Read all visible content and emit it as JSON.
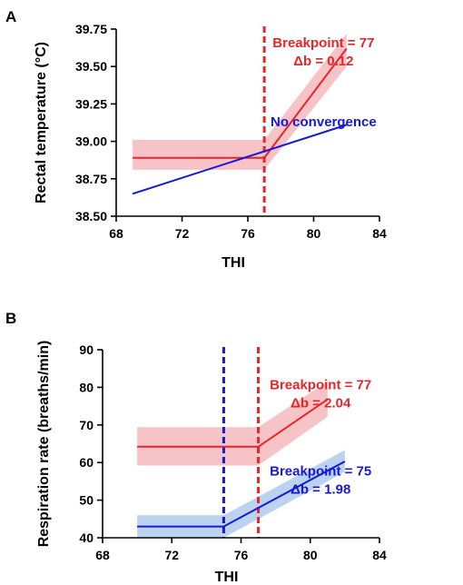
{
  "chart_data": [
    {
      "panel": "A",
      "type": "line",
      "xlabel": "THI",
      "ylabel": "Rectal temperature (°C)",
      "xlim": [
        68,
        84
      ],
      "ylim": [
        38.5,
        39.75
      ],
      "xticks": [
        68,
        72,
        76,
        80,
        84
      ],
      "yticks": [
        "38.50",
        "38.75",
        "39.00",
        "39.25",
        "39.50",
        "39.75"
      ],
      "grid": false,
      "series": [
        {
          "color": "#e4262b",
          "band_color": "#f6c4c6",
          "points": [
            [
              69,
              38.89
            ],
            [
              77,
              38.89
            ],
            [
              82,
              39.62
            ]
          ],
          "band_upper": [
            [
              69,
              39.01
            ],
            [
              77,
              39.01
            ],
            [
              82,
              39.72
            ]
          ],
          "band_lower": [
            [
              69,
              38.81
            ],
            [
              77,
              38.81
            ],
            [
              82,
              39.5
            ]
          ]
        },
        {
          "color": "#1719d6",
          "points": [
            [
              69,
              38.65
            ],
            [
              82,
              39.11
            ]
          ]
        }
      ],
      "breakpoints": [
        {
          "x": 77,
          "color": "#e4262b"
        }
      ],
      "annotations": [
        {
          "lines": [
            "Breakpoint = 77",
            "Δb = 0.12"
          ],
          "color": "#e4262b",
          "x": 80.6,
          "y": 39.63
        },
        {
          "lines": [
            "No convergence"
          ],
          "color": "#1719d6",
          "x": 80.6,
          "y": 39.1
        }
      ]
    },
    {
      "panel": "B",
      "type": "line",
      "xlabel": "THI",
      "ylabel": "Respiration rate (breaths/min)",
      "xlim": [
        68,
        84
      ],
      "ylim": [
        40,
        90
      ],
      "xticks": [
        68,
        72,
        76,
        80,
        84
      ],
      "yticks": [
        "40",
        "50",
        "60",
        "70",
        "80",
        "90"
      ],
      "grid": false,
      "series": [
        {
          "color": "#e4262b",
          "band_color": "#f6c4c6",
          "points": [
            [
              70,
              64.2
            ],
            [
              77,
              64.2
            ],
            [
              81,
              76.8
            ]
          ],
          "band_upper": [
            [
              70,
              69.4
            ],
            [
              77,
              69.4
            ],
            [
              81,
              81.6
            ]
          ],
          "band_lower": [
            [
              70,
              59.2
            ],
            [
              77,
              59.2
            ],
            [
              81,
              72.2
            ]
          ]
        },
        {
          "color": "#1719d6",
          "band_color": "#bcd3ef",
          "points": [
            [
              70,
              43.0
            ],
            [
              75,
              43.0
            ],
            [
              82,
              60.3
            ]
          ],
          "band_upper": [
            [
              70,
              46.0
            ],
            [
              75,
              46.0
            ],
            [
              82,
              63.3
            ]
          ],
          "band_lower": [
            [
              70,
              40.0
            ],
            [
              75,
              40.0
            ],
            [
              82,
              57.5
            ]
          ]
        }
      ],
      "breakpoints": [
        {
          "x": 75,
          "color": "#1719d6"
        },
        {
          "x": 77,
          "color": "#e4262b"
        }
      ],
      "annotations": [
        {
          "lines": [
            "Breakpoint = 77",
            "Δb = 2.04"
          ],
          "color": "#e4262b",
          "x": 80.6,
          "y": 79.5
        },
        {
          "lines": [
            "Breakpoint = 75",
            "Δb = 1.98"
          ],
          "color": "#1719d6",
          "x": 80.6,
          "y": 56.5
        }
      ]
    }
  ]
}
